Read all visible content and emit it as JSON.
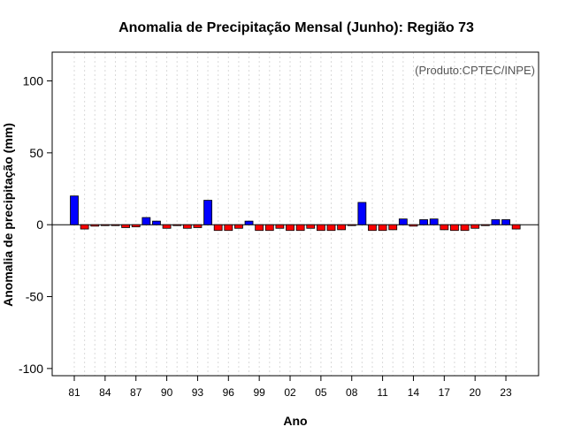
{
  "chart_data": {
    "type": "bar",
    "title": "Anomalia de Precipitação Mensal (Junho): Região 73",
    "xlabel": "Ano",
    "ylabel": "Anomalia de precipitação (mm)",
    "source_note": "(Produto:CPTEC/INPE)",
    "ylim": [
      -105,
      120
    ],
    "yticks": [
      -100,
      -50,
      0,
      50,
      100
    ],
    "xtick_labels": [
      "81",
      "84",
      "87",
      "90",
      "93",
      "96",
      "99",
      "02",
      "05",
      "08",
      "11",
      "14",
      "17",
      "20",
      "23"
    ],
    "grid": true,
    "categories": [
      "1981",
      "1982",
      "1983",
      "1984",
      "1985",
      "1986",
      "1987",
      "1988",
      "1989",
      "1990",
      "1991",
      "1992",
      "1993",
      "1994",
      "1995",
      "1996",
      "1997",
      "1998",
      "1999",
      "2000",
      "2001",
      "2002",
      "2003",
      "2004",
      "2005",
      "2006",
      "2007",
      "2008",
      "2009",
      "2010",
      "2011",
      "2012",
      "2013",
      "2014",
      "2015",
      "2016",
      "2017",
      "2018",
      "2019",
      "2020",
      "2021",
      "2022",
      "2023",
      "2024"
    ],
    "values": [
      20,
      -3,
      -1,
      -0.5,
      -0.5,
      -2,
      -1.5,
      5,
      2.5,
      -2.5,
      -0.5,
      -2.5,
      -2,
      17,
      -4,
      -4,
      -2.5,
      2.5,
      -4,
      -4,
      -2.5,
      -4,
      -4,
      -2.5,
      -4,
      -4,
      -3.5,
      -0.5,
      15.5,
      -4,
      -4,
      -3.5,
      4,
      -1,
      3.5,
      4,
      -3.5,
      -4,
      -4,
      -2.5,
      -0.5,
      3.5,
      3.5,
      -3
    ],
    "colors": {
      "positive": "#0000ff",
      "negative": "#ff0000",
      "bar_border": "#000000",
      "grid": "#d9d9d9"
    }
  }
}
